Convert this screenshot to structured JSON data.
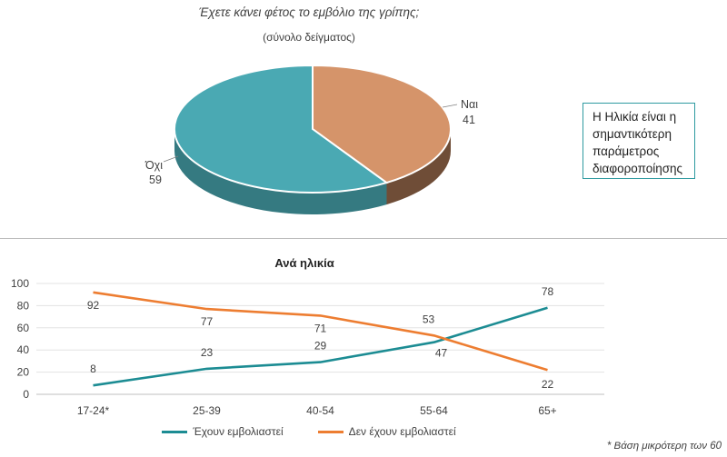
{
  "pie_chart": {
    "title": "Έχετε κάνει φέτος το εμβόλιο της γρίπης;",
    "subtitle": "(σύνολο δείγματος)",
    "colors": {
      "Ναι": "#d5946a",
      "Όχι": "#4aa9b3"
    }
  },
  "note": "Η Ηλικία είναι η σημαντικότερη παράμετρος διαφοροποίησης",
  "line_chart": {
    "title": "Ανά ηλικία",
    "footnote": "* Βάση μικρότερη των 60"
  },
  "chart_data": [
    {
      "type": "pie",
      "title": "Έχετε κάνει φέτος το εμβόλιο της γρίπης;",
      "subtitle": "(σύνολο δείγματος)",
      "categories": [
        "Ναι",
        "Όχι"
      ],
      "values": [
        41,
        59
      ],
      "colors": [
        "#d5946a",
        "#4aa9b3"
      ]
    },
    {
      "type": "line",
      "title": "Ανά ηλικία",
      "categories": [
        "17-24*",
        "25-39",
        "40-54",
        "55-64",
        "65+"
      ],
      "series": [
        {
          "name": "Έχουν εμβολιαστεί",
          "values": [
            8,
            23,
            29,
            47,
            78
          ],
          "color": "#1c8c93"
        },
        {
          "name": "Δεν έχουν εμβολιαστεί",
          "values": [
            92,
            77,
            71,
            53,
            22
          ],
          "color": "#ed7d31"
        }
      ],
      "yticks": [
        0,
        20,
        40,
        60,
        80,
        100
      ],
      "ylim": [
        0,
        100
      ],
      "grid": true,
      "legend": "bottom"
    }
  ]
}
